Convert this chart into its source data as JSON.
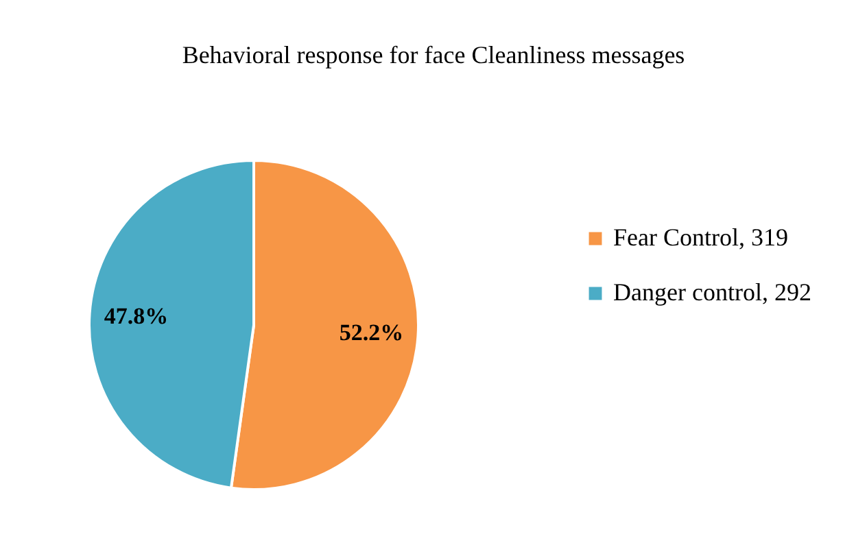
{
  "chart_data": {
    "type": "pie",
    "title": "Behavioral response for face Cleanliness messages",
    "categories": [
      "Fear Control, 319",
      "Danger control, 292"
    ],
    "values": [
      52.2,
      47.8
    ],
    "value_labels": [
      "52.2%",
      "47.8%"
    ],
    "colors": [
      "#f79646",
      "#4bacc6"
    ],
    "legend": "right"
  }
}
